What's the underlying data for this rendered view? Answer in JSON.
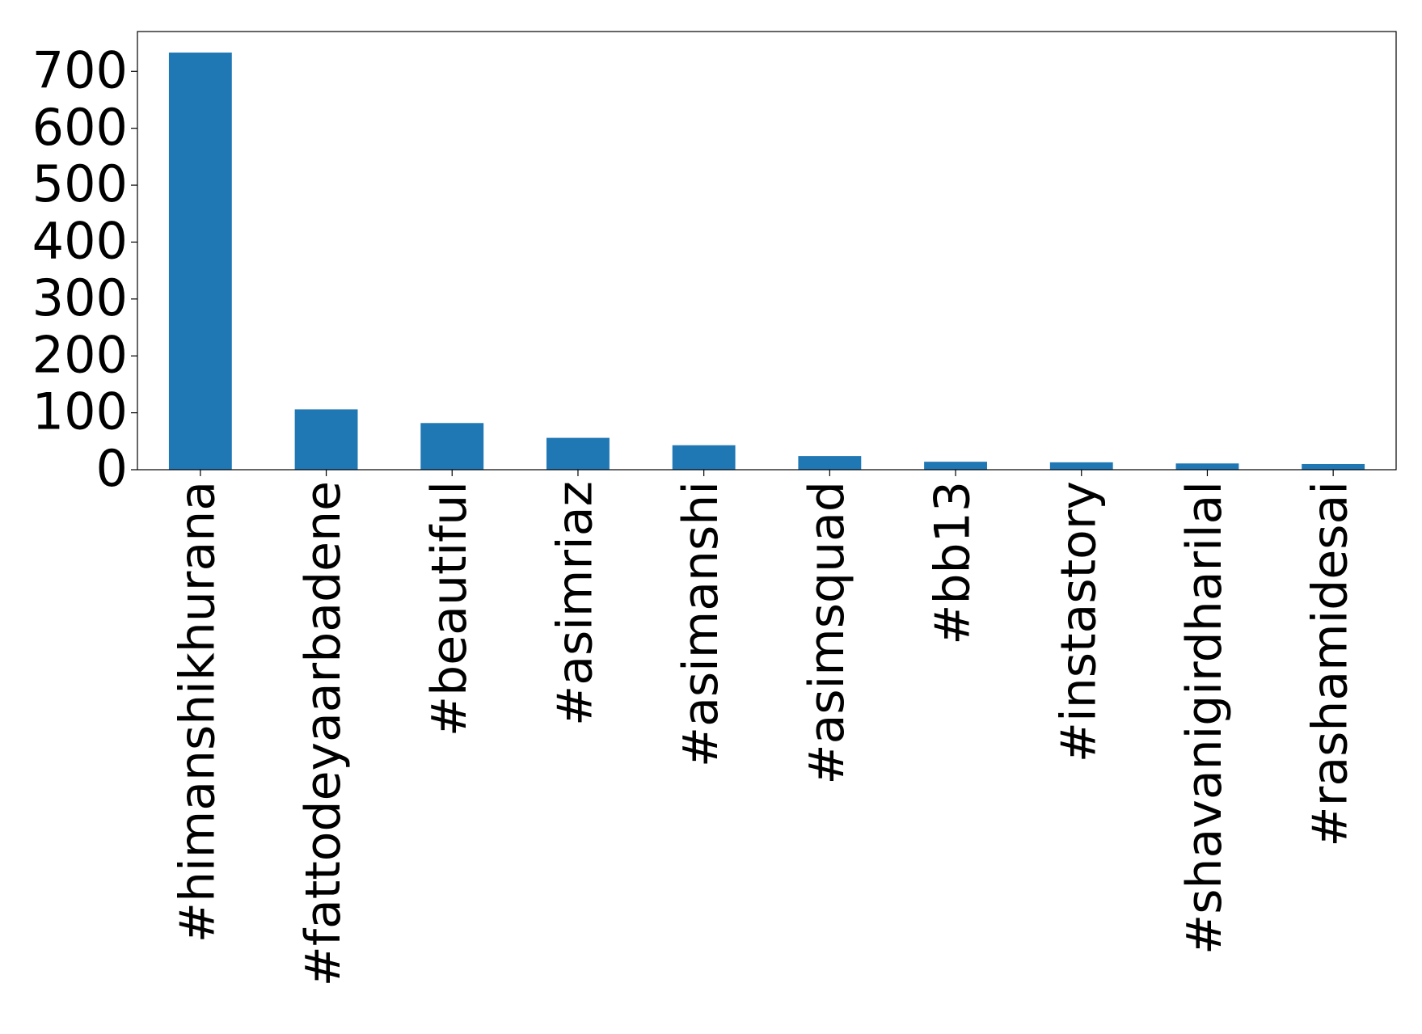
{
  "chart_data": {
    "type": "bar",
    "categories": [
      "#himanshikhurana",
      "#fattodeyaarbadene",
      "#beautiful",
      "#asimriaz",
      "#asimanshi",
      "#asimsquad",
      "#bb13",
      "#instastory",
      "#shavanigirdharilal",
      "#rashamidesai"
    ],
    "values": [
      733,
      106,
      82,
      56,
      43,
      24,
      14,
      13,
      11,
      10
    ],
    "color": "#1f77b4",
    "ylim": [
      0,
      770
    ],
    "yticks": [
      0,
      100,
      200,
      300,
      400,
      500,
      600,
      700
    ],
    "grid": false
  }
}
